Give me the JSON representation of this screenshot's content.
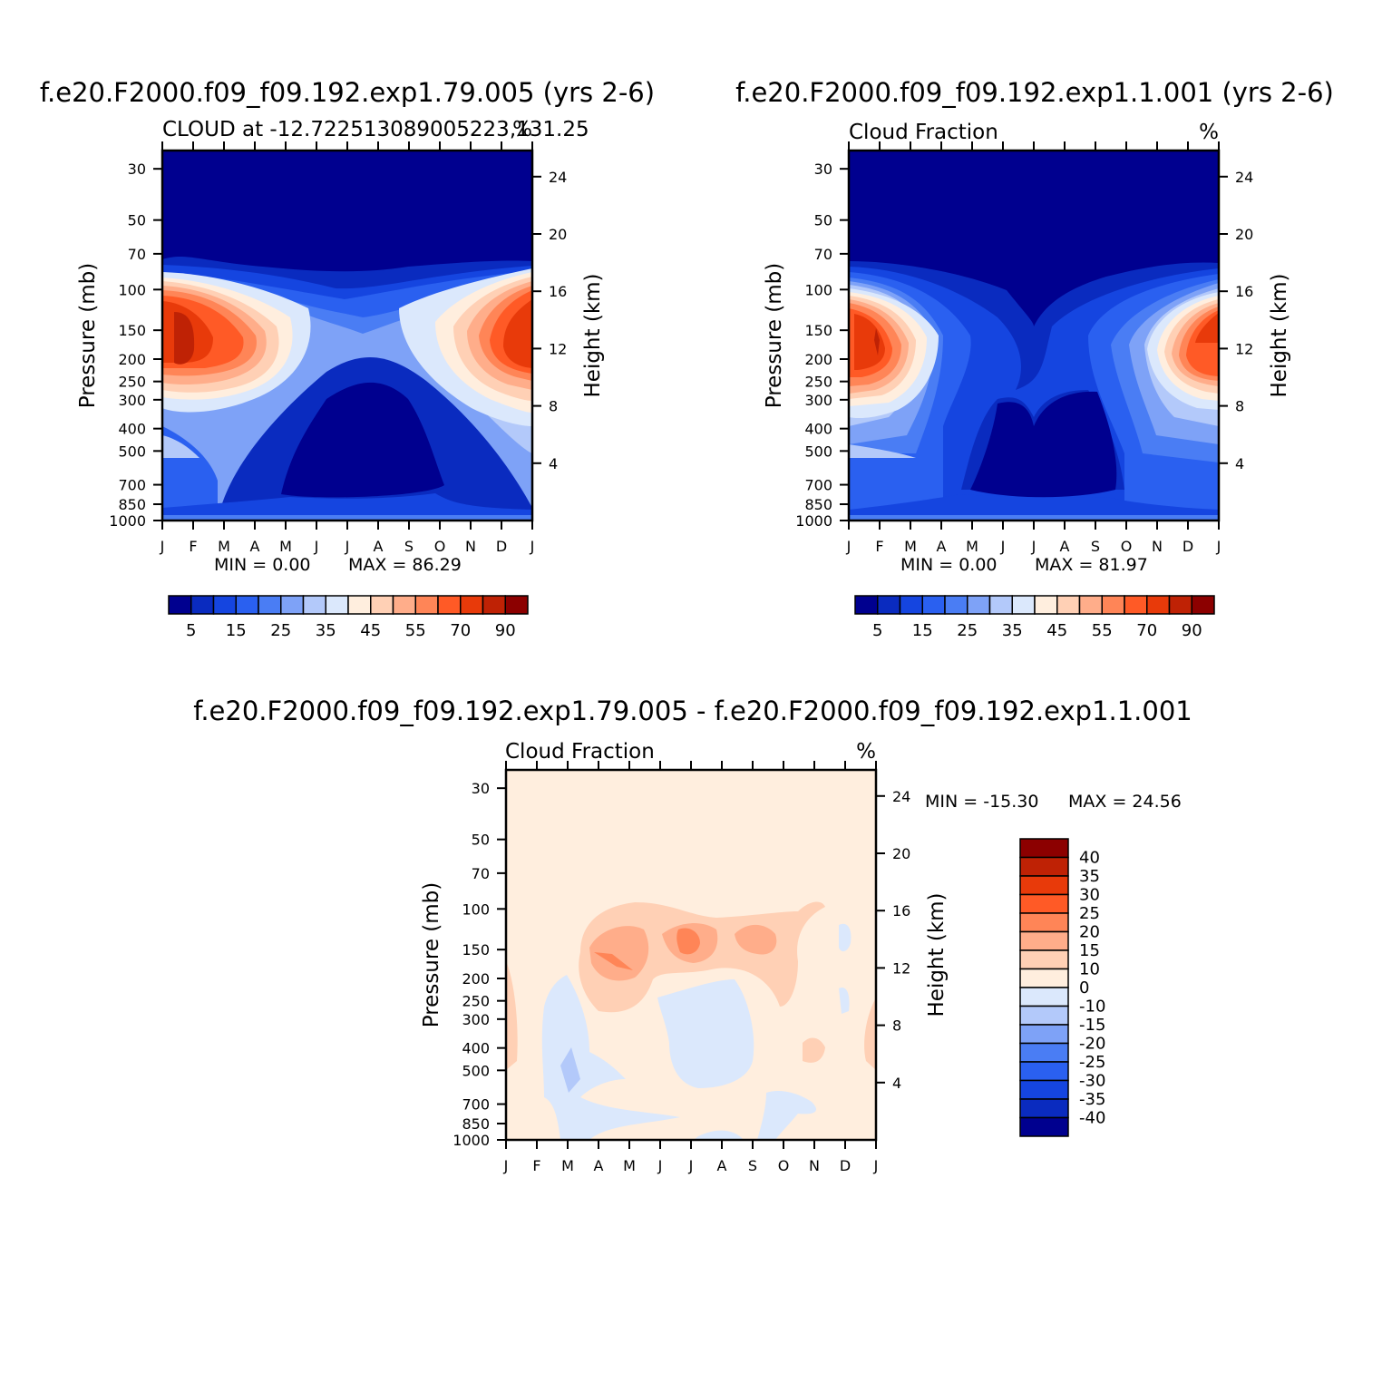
{
  "chart_data": [
    {
      "type": "heatmap",
      "title": "f.e20.F2000.f09_f09.192.exp1.79.005 (yrs 2-6)",
      "subtitle_left": "CLOUD at -12.722513089005223,131.25",
      "subtitle_right": "%",
      "xlabel": "",
      "ylabel_left": "Pressure (mb)",
      "ylabel_right": "Height (km)",
      "x_ticks": [
        "J",
        "F",
        "M",
        "A",
        "M",
        "J",
        "J",
        "A",
        "S",
        "O",
        "N",
        "D",
        "J"
      ],
      "y_ticks_pressure": [
        30,
        50,
        70,
        100,
        150,
        200,
        250,
        300,
        400,
        500,
        700,
        850,
        1000
      ],
      "y_ticks_height": [
        24,
        20,
        16,
        12,
        8,
        4
      ],
      "ylim_pressure": [
        1000,
        25
      ],
      "min_text": "MIN =    0.00",
      "max_text": "MAX =   86.29",
      "colorbar_labels": [
        "5",
        "15",
        "25",
        "35",
        "45",
        "55",
        "70",
        "90"
      ],
      "colorbar_orientation": "horizontal",
      "colors": [
        "#00008f",
        "#0a2bbf",
        "#1545e0",
        "#2a60f0",
        "#4a7df4",
        "#7ea2f7",
        "#b3c9fa",
        "#dbe8fc",
        "#ffeede",
        "#ffd0b5",
        "#ffad8a",
        "#ff8557",
        "#ff5a26",
        "#e83a0a",
        "#bf2205",
        "#8c0000"
      ]
    },
    {
      "type": "heatmap",
      "title": "f.e20.F2000.f09_f09.192.exp1.1.001 (yrs 2-6)",
      "subtitle_left": "Cloud Fraction",
      "subtitle_right": "%",
      "xlabel": "",
      "ylabel_left": "Pressure (mb)",
      "ylabel_right": "Height (km)",
      "x_ticks": [
        "J",
        "F",
        "M",
        "A",
        "M",
        "J",
        "J",
        "A",
        "S",
        "O",
        "N",
        "D",
        "J"
      ],
      "y_ticks_pressure": [
        30,
        50,
        70,
        100,
        150,
        200,
        250,
        300,
        400,
        500,
        700,
        850,
        1000
      ],
      "y_ticks_height": [
        24,
        20,
        16,
        12,
        8,
        4
      ],
      "ylim_pressure": [
        1000,
        25
      ],
      "min_text": "MIN =    0.00",
      "max_text": "MAX =   81.97",
      "colorbar_labels": [
        "5",
        "15",
        "25",
        "35",
        "45",
        "55",
        "70",
        "90"
      ],
      "colorbar_orientation": "horizontal"
    },
    {
      "type": "heatmap",
      "title": "f.e20.F2000.f09_f09.192.exp1.79.005 - f.e20.F2000.f09_f09.192.exp1.1.001",
      "subtitle_left": "Cloud Fraction",
      "subtitle_right": "%",
      "xlabel": "",
      "ylabel_left": "Pressure (mb)",
      "ylabel_right": "Height (km)",
      "x_ticks": [
        "J",
        "F",
        "M",
        "A",
        "M",
        "J",
        "J",
        "A",
        "S",
        "O",
        "N",
        "D",
        "J"
      ],
      "y_ticks_pressure": [
        30,
        50,
        70,
        100,
        150,
        200,
        250,
        300,
        400,
        500,
        700,
        850,
        1000
      ],
      "y_ticks_height": [
        24,
        20,
        16,
        12,
        8,
        4
      ],
      "ylim_pressure": [
        1000,
        25
      ],
      "min_text": "MIN = -15.30",
      "max_text": "MAX =   24.56",
      "colorbar_labels": [
        "40",
        "35",
        "30",
        "25",
        "20",
        "15",
        "10",
        "0",
        "-10",
        "-15",
        "-20",
        "-25",
        "-30",
        "-35",
        "-40"
      ],
      "colorbar_orientation": "vertical",
      "colors": [
        "#8c0000",
        "#bf2205",
        "#e83a0a",
        "#ff5a26",
        "#ff8557",
        "#ffad8a",
        "#ffd0b5",
        "#ffeede",
        "#dbe8fc",
        "#b3c9fa",
        "#7ea2f7",
        "#4a7df4",
        "#2a60f0",
        "#1545e0",
        "#0a2bbf",
        "#00008f"
      ]
    }
  ]
}
